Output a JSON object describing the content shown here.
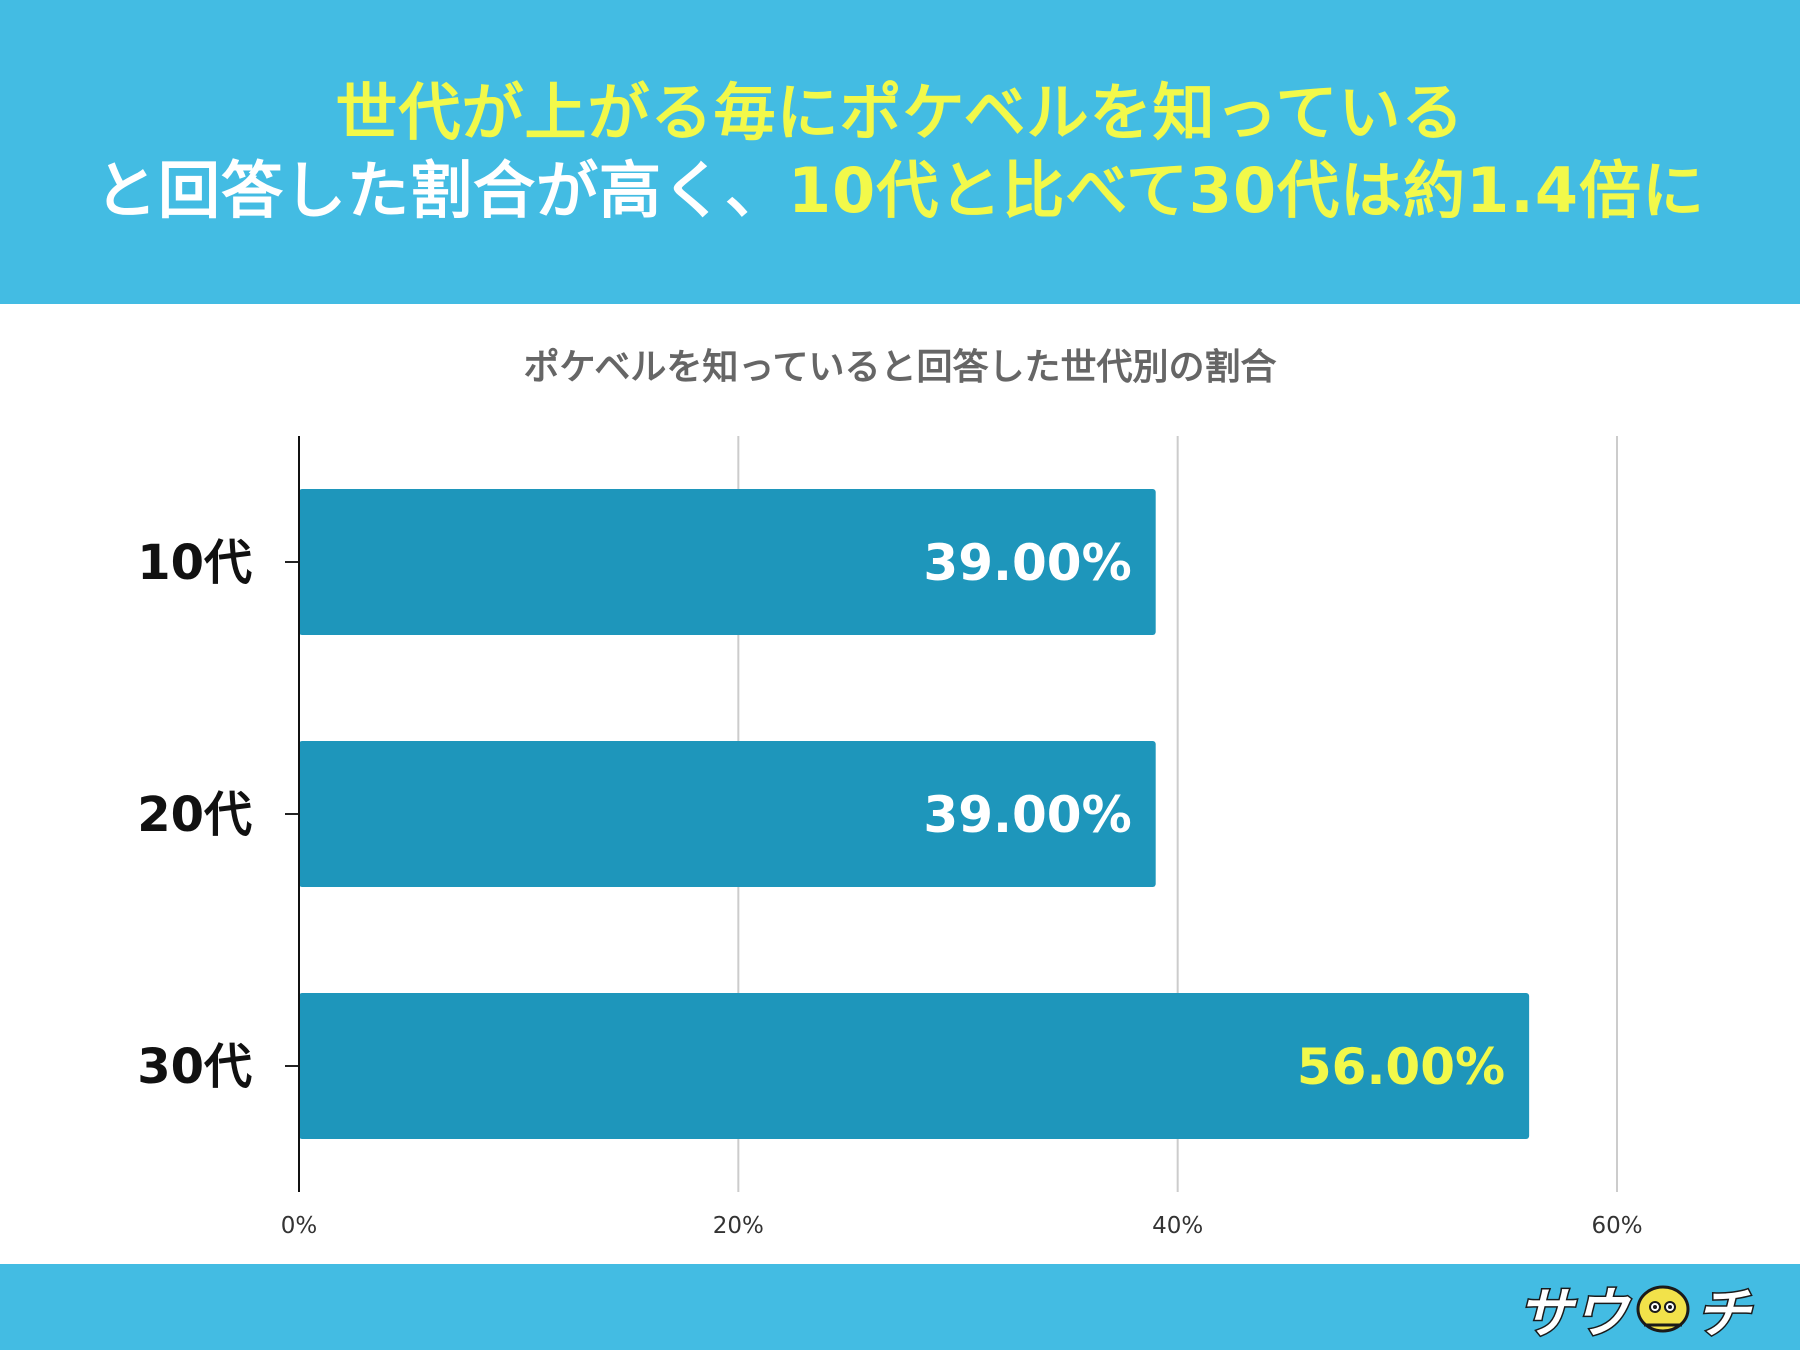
{
  "header": {
    "line1": [
      {
        "text": "世代が上がる毎にポケベルを知っている",
        "color": "yellow"
      }
    ],
    "line2": [
      {
        "text": "と回答した割合が高く、",
        "color": "white"
      },
      {
        "text": "10代と比べて30代は約1.4倍に",
        "color": "yellow"
      }
    ]
  },
  "colors": {
    "header_bg": "#43bce3",
    "bar": "#1e96bb",
    "highlight": "#f2f94a",
    "label_white": "#ffffff"
  },
  "chart_data": {
    "type": "bar",
    "orientation": "horizontal",
    "title": "ポケベルを知っていると回答した世代別の割合",
    "categories": [
      "10代",
      "20代",
      "30代"
    ],
    "values": [
      39.0,
      39.0,
      56.0
    ],
    "value_labels": [
      "39.00%",
      "39.00%",
      "56.00%"
    ],
    "highlight_index": 2,
    "xlim": [
      0,
      60
    ],
    "xticks": [
      0,
      20,
      40,
      60
    ],
    "xtick_labels": [
      "0%",
      "20%",
      "40%",
      "60%"
    ],
    "grid": true,
    "xlabel": "",
    "ylabel": ""
  },
  "footer": {
    "logo_left": "サウ",
    "logo_right": "チ",
    "logo_icon": "lantern-mascot-icon"
  }
}
